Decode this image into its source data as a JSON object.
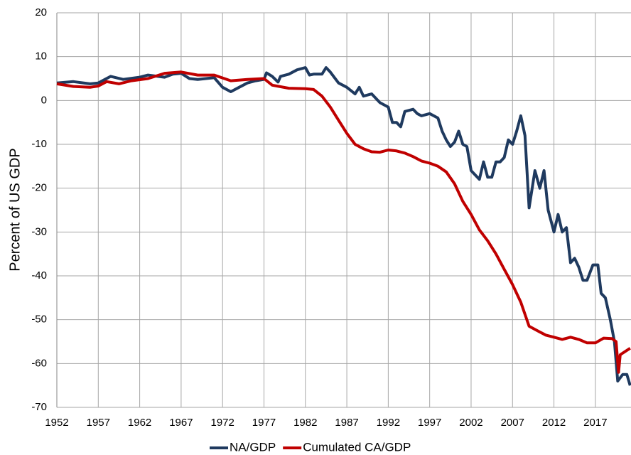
{
  "chart_data": {
    "type": "line",
    "ylabel": "Percent of US GDP",
    "xlim": [
      1952,
      2021.3
    ],
    "xticks": [
      1952,
      1957,
      1962,
      1967,
      1972,
      1977,
      1982,
      1987,
      1992,
      1997,
      2002,
      2007,
      2012,
      2017
    ],
    "ylim": [
      -70,
      20
    ],
    "yticks": [
      20,
      10,
      0,
      -10,
      -20,
      -30,
      -40,
      -50,
      -60,
      -70
    ],
    "grid": true,
    "legend": "bottom",
    "series": [
      {
        "name": "NA/GDP",
        "color": "#1f3a5f",
        "x": [
          1952,
          1954,
          1956,
          1957,
          1958.5,
          1960,
          1962,
          1963,
          1965,
          1966,
          1967,
          1968,
          1969,
          1970,
          1971,
          1972,
          1973,
          1974,
          1975,
          1976,
          1977,
          1977.3,
          1978,
          1978.7,
          1979,
          1980,
          1981,
          1982,
          1982.5,
          1983,
          1984,
          1984.5,
          1985,
          1986,
          1987,
          1988,
          1988.5,
          1989,
          1990,
          1991,
          1992,
          1992.5,
          1993,
          1993.5,
          1994,
          1995,
          1995.5,
          1996,
          1997,
          1998,
          1998.5,
          1999,
          1999.5,
          2000,
          2000.5,
          2001,
          2001.5,
          2002,
          2003,
          2003.5,
          2004,
          2004.5,
          2005,
          2005.5,
          2006,
          2006.5,
          2007,
          2007.5,
          2008,
          2008.5,
          2009,
          2009.7,
          2010.3,
          2010.8,
          2011.3,
          2012,
          2012.5,
          2013,
          2013.5,
          2014,
          2014.5,
          2015,
          2015.5,
          2016,
          2016.7,
          2017.3,
          2017.7,
          2018.2,
          2018.8,
          2019.3,
          2019.7,
          2020.3,
          2020.8,
          2021.2
        ],
        "values": [
          4,
          4.3,
          3.8,
          4,
          5.5,
          4.8,
          5.3,
          5.8,
          5.3,
          6,
          6.2,
          5,
          4.8,
          5,
          5.2,
          3,
          2,
          3,
          4,
          4.5,
          4.8,
          6.3,
          5.5,
          4.2,
          5.5,
          6,
          7,
          7.5,
          5.8,
          6,
          6,
          7.5,
          6.5,
          4,
          3,
          1.5,
          3,
          1,
          1.5,
          -0.5,
          -1.5,
          -5,
          -5,
          -6,
          -2.5,
          -2,
          -3,
          -3.5,
          -3,
          -4,
          -7,
          -9,
          -10.5,
          -9.5,
          -7,
          -10,
          -10.5,
          -16,
          -18,
          -14,
          -17.5,
          -17.5,
          -14,
          -14,
          -13,
          -9,
          -10,
          -7,
          -3.5,
          -8,
          -24.5,
          -16,
          -20,
          -16,
          -25,
          -30,
          -26,
          -30,
          -29,
          -37,
          -36,
          -38,
          -41,
          -41,
          -37.5,
          -37.5,
          -44,
          -45,
          -50,
          -55,
          -64,
          -62.5,
          -62.5,
          -65
        ]
      },
      {
        "name": "Cumulated CA/GDP",
        "color": "#c00000",
        "x": [
          1952,
          1954,
          1956,
          1957,
          1958,
          1959.5,
          1961,
          1963,
          1965,
          1967,
          1969,
          1971,
          1973,
          1975,
          1977,
          1978,
          1980,
          1982,
          1983,
          1984,
          1985,
          1986,
          1987,
          1988,
          1989,
          1990,
          1991,
          1992,
          1993,
          1994,
          1995,
          1996,
          1997,
          1998,
          1999,
          2000,
          2001,
          2002,
          2003,
          2004,
          2005,
          2006,
          2007,
          2008,
          2009,
          2010,
          2011,
          2012,
          2013,
          2014,
          2015,
          2016,
          2017,
          2018,
          2019,
          2019.5,
          2019.8,
          2020,
          2021.2
        ],
        "values": [
          3.8,
          3.2,
          3,
          3.3,
          4.3,
          3.8,
          4.5,
          5,
          6.2,
          6.5,
          5.8,
          5.8,
          4.5,
          4.8,
          5,
          3.5,
          2.8,
          2.7,
          2.5,
          1,
          -1.5,
          -4.5,
          -7.5,
          -10,
          -11,
          -11.7,
          -11.8,
          -11.3,
          -11.5,
          -12,
          -12.8,
          -13.8,
          -14.3,
          -15,
          -16.3,
          -19,
          -23,
          -26,
          -29.5,
          -32,
          -35,
          -38.5,
          -42,
          -46,
          -51.5,
          -52.5,
          -53.5,
          -54,
          -54.5,
          -54,
          -54.5,
          -55.3,
          -55.3,
          -54.2,
          -54.3,
          -55,
          -62,
          -58,
          -56.5
        ]
      }
    ]
  }
}
